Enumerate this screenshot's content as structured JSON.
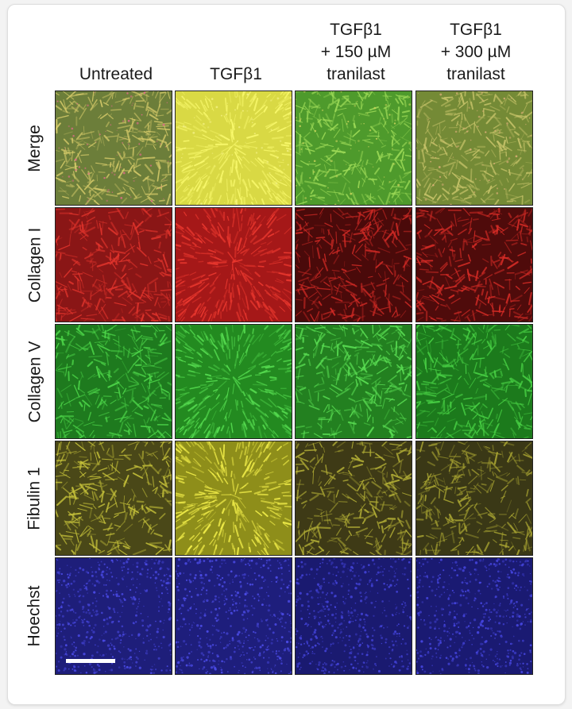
{
  "columns": [
    {
      "label": "Untreated"
    },
    {
      "label": "TGFβ1"
    },
    {
      "label": "TGFβ1\n+ 150 µM\ntranilast"
    },
    {
      "label": "TGFβ1\n+ 300 µM\ntranilast"
    }
  ],
  "rows": [
    {
      "label": "Merge"
    },
    {
      "label": "Collagen I"
    },
    {
      "label": "Collagen V"
    },
    {
      "label": "Fibulin 1"
    },
    {
      "label": "Hoechst"
    }
  ],
  "palette": {
    "merge": {
      "bases": [
        "#6c7e3a",
        "#d9d944",
        "#4e9a2c",
        "#748a36"
      ],
      "streak": [
        "#d8cc6a",
        "#fbfb6e",
        "#9fdc58",
        "#c8c46a"
      ],
      "speck": [
        "#e06a8a",
        "#f2ef80",
        "#c7d35a",
        "#e0b07a"
      ]
    },
    "col1": {
      "bases": [
        "#8a1616",
        "#a51818",
        "#4a0a0a",
        "#4f0b0b"
      ],
      "streak": [
        "#e2342c",
        "#f03a30",
        "#d12a25",
        "#d82c26"
      ]
    },
    "col5": {
      "bases": [
        "#1e7a1e",
        "#238a20",
        "#238020",
        "#1c7a1c"
      ],
      "streak": [
        "#4ed84a",
        "#58e052",
        "#5be054",
        "#4ad446"
      ]
    },
    "fib": {
      "bases": [
        "#4a4818",
        "#8e8e1a",
        "#3e3a16",
        "#3a3816"
      ],
      "streak": [
        "#c6c23a",
        "#f4f04a",
        "#b4b036",
        "#a8a432"
      ]
    },
    "hoechst": {
      "bases": [
        "#1e1e7a",
        "#1e1e7c",
        "#1a1a70",
        "#1a1a72"
      ],
      "streak": [
        "#4a4ae6",
        "#4c4ce8",
        "#4444dc",
        "#4646e0"
      ]
    }
  }
}
